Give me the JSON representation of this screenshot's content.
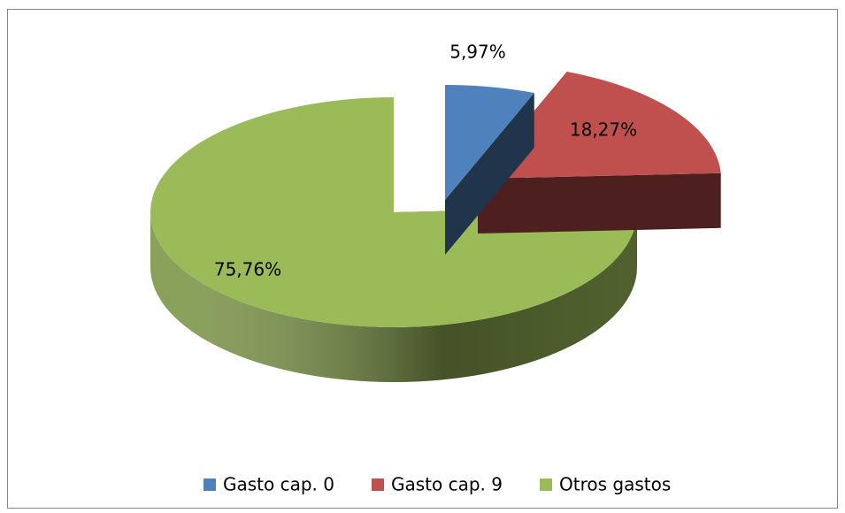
{
  "chart_data": {
    "type": "pie",
    "categories": [
      "Gasto cap. 0",
      "Gasto cap. 9",
      "Otros gastos"
    ],
    "values": [
      5.97,
      18.27,
      75.76
    ],
    "value_labels": [
      "5,97%",
      "18,27%",
      "75,76%"
    ],
    "colors": [
      "#4f81bd",
      "#c0504d",
      "#9bbb59"
    ],
    "legend": "bottom"
  }
}
